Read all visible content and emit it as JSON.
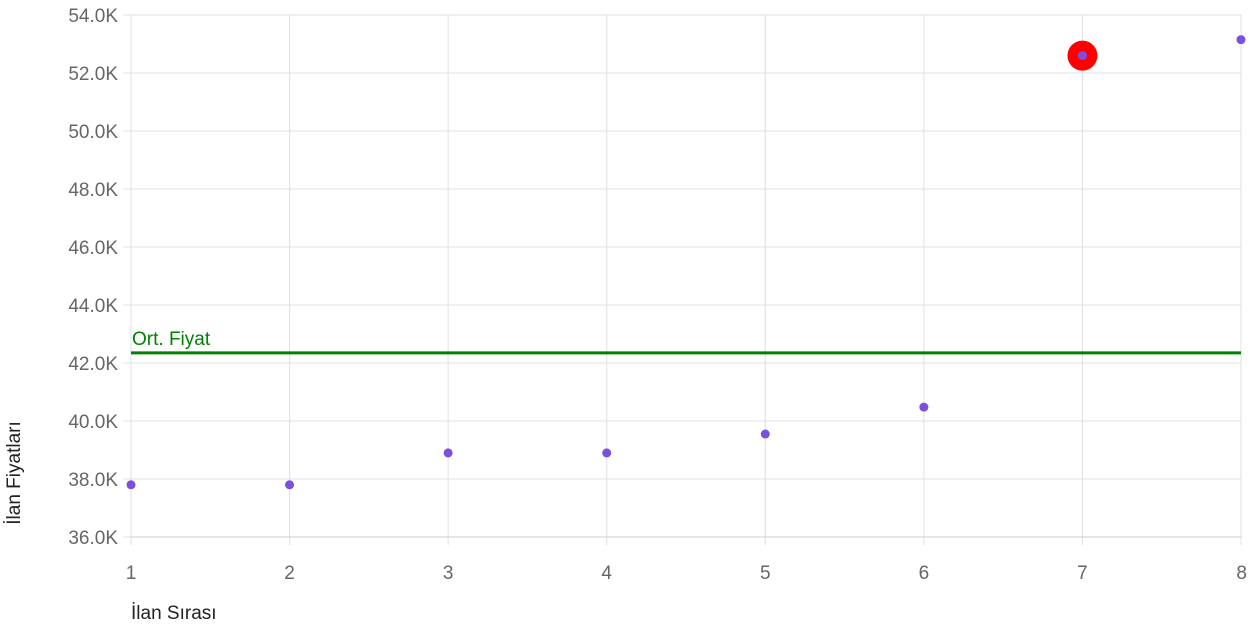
{
  "chart_data": {
    "type": "scatter",
    "xlabel": "İlan Sırası",
    "ylabel": "İlan Fiyatları",
    "xlim": [
      1,
      8
    ],
    "ylim": [
      36000,
      54000
    ],
    "x_ticks": [
      1,
      2,
      3,
      4,
      5,
      6,
      7,
      8
    ],
    "x_tick_labels": [
      "1",
      "2",
      "3",
      "4",
      "5",
      "6",
      "7",
      "8"
    ],
    "y_ticks": [
      36000,
      38000,
      40000,
      42000,
      44000,
      46000,
      48000,
      50000,
      52000,
      54000
    ],
    "y_tick_labels": [
      "36.0K",
      "38.0K",
      "40.0K",
      "42.0K",
      "44.0K",
      "46.0K",
      "48.0K",
      "50.0K",
      "52.0K",
      "54.0K"
    ],
    "grid": true,
    "point_color": "#7b4fe0",
    "series": [
      {
        "x": [
          1,
          2,
          3,
          4,
          5,
          6,
          7,
          8
        ],
        "y": [
          37800,
          37800,
          38900,
          38900,
          39550,
          40480,
          52600,
          53150
        ]
      }
    ],
    "highlight": {
      "x": 7,
      "y": 52600,
      "color": "#ff0000"
    },
    "reference_line": {
      "label": "Ort. Fiyat",
      "y": 42350,
      "color": "#008000"
    }
  }
}
